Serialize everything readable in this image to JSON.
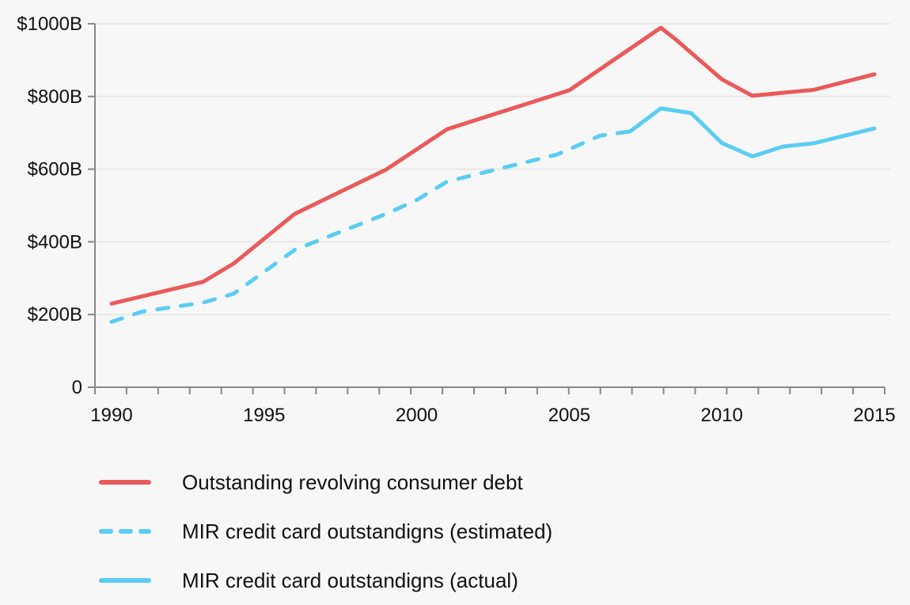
{
  "chart_data": {
    "type": "line",
    "title": "",
    "xlabel": "",
    "ylabel": "",
    "xlim": [
      1990,
      2015
    ],
    "ylim": [
      0,
      1000
    ],
    "grid": true,
    "x_ticks": [
      1990,
      1995,
      2000,
      2005,
      2010,
      2015
    ],
    "x_tick_labels": [
      "1990",
      "1995",
      "2000",
      "2005",
      "2010",
      "2015"
    ],
    "y_ticks": [
      0,
      200,
      400,
      600,
      800,
      1000
    ],
    "y_tick_labels": [
      "0",
      "$200B",
      "$400B",
      "$600B",
      "$800B",
      "$1000B"
    ],
    "legend_position": "bottom",
    "series": [
      {
        "name": "Outstanding revolving consumer debt",
        "color": "#ea5a5b",
        "style": "solid",
        "x": [
          1990,
          1993,
          1994,
          1996,
          1999,
          2001,
          2005,
          2008,
          2008.5,
          2010,
          2011,
          2013,
          2015
        ],
        "values": [
          230,
          290,
          340,
          477,
          599,
          710,
          817,
          989,
          956,
          847,
          802,
          818,
          861
        ]
      },
      {
        "name": "MIR credit card outstandigns (estimated)",
        "color": "#5bcdf2",
        "style": "dashed",
        "x": [
          1990,
          1991,
          1993,
          1994,
          1996,
          1999,
          2000,
          2001,
          2004.6,
          2006,
          2007
        ],
        "values": [
          180,
          208,
          233,
          257,
          378,
          477,
          515,
          566,
          640,
          692,
          704
        ]
      },
      {
        "name": "MIR credit card outstandigns (actual)",
        "color": "#5bcdf2",
        "style": "solid",
        "x": [
          2007,
          2008,
          2009,
          2010,
          2011,
          2012,
          2013,
          2015
        ],
        "values": [
          704,
          767,
          754,
          672,
          635,
          662,
          671,
          712
        ]
      }
    ]
  },
  "legend": {
    "items": [
      {
        "label": "Outstanding revolving consumer debt",
        "color": "#ea5a5b",
        "style": "solid"
      },
      {
        "label": "MIR credit card outstandigns (estimated)",
        "color": "#5bcdf2",
        "style": "dashed"
      },
      {
        "label": "MIR credit card outstandigns (actual)",
        "color": "#5bcdf2",
        "style": "solid"
      }
    ]
  },
  "colors": {
    "axis": "#888888",
    "grid": "#e8e8e8",
    "background": "#f7f7f7"
  }
}
